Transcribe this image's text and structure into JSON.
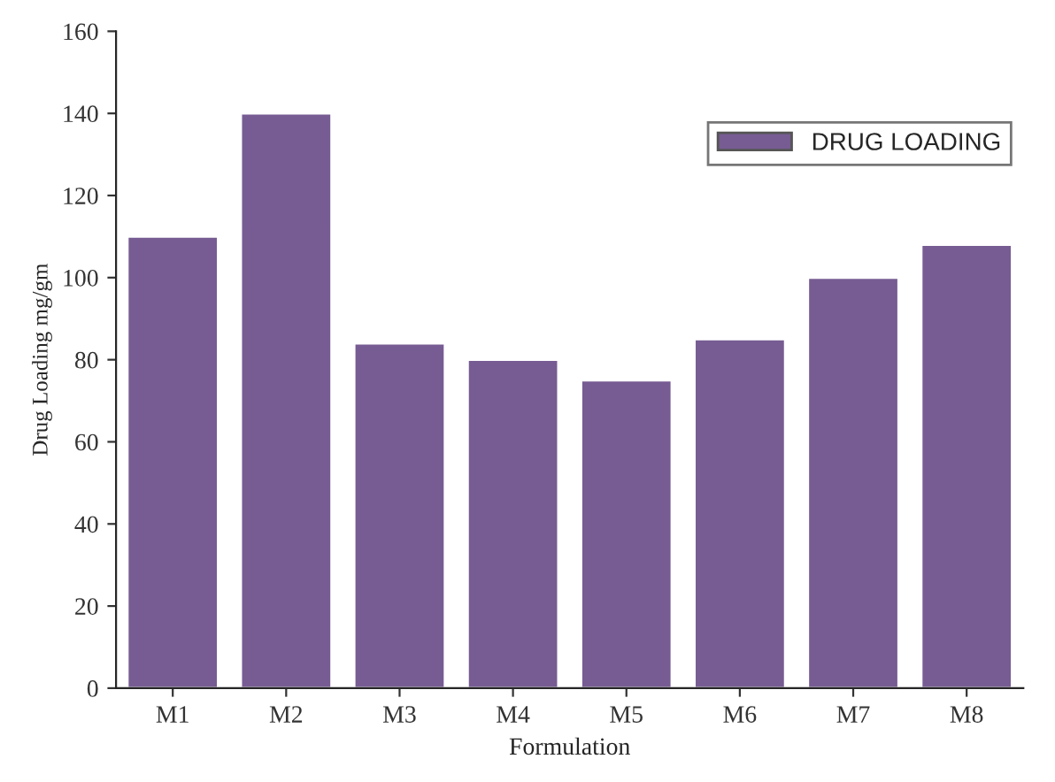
{
  "chart_data": {
    "type": "bar",
    "xlabel": "Formulation",
    "ylabel": "Drug Loading mg/gm",
    "categories": [
      "M1",
      "M2",
      "M3",
      "M4",
      "M5",
      "M6",
      "M7",
      "M8"
    ],
    "series": [
      {
        "name": "DRUG LOADING",
        "color": "#775c93",
        "values": [
          110,
          140,
          84,
          80,
          75,
          85,
          100,
          108
        ]
      }
    ],
    "ylim": [
      0,
      160
    ],
    "yticks": [
      0,
      20,
      40,
      60,
      80,
      100,
      120,
      140,
      160
    ],
    "grid": false,
    "legend": "top right"
  }
}
